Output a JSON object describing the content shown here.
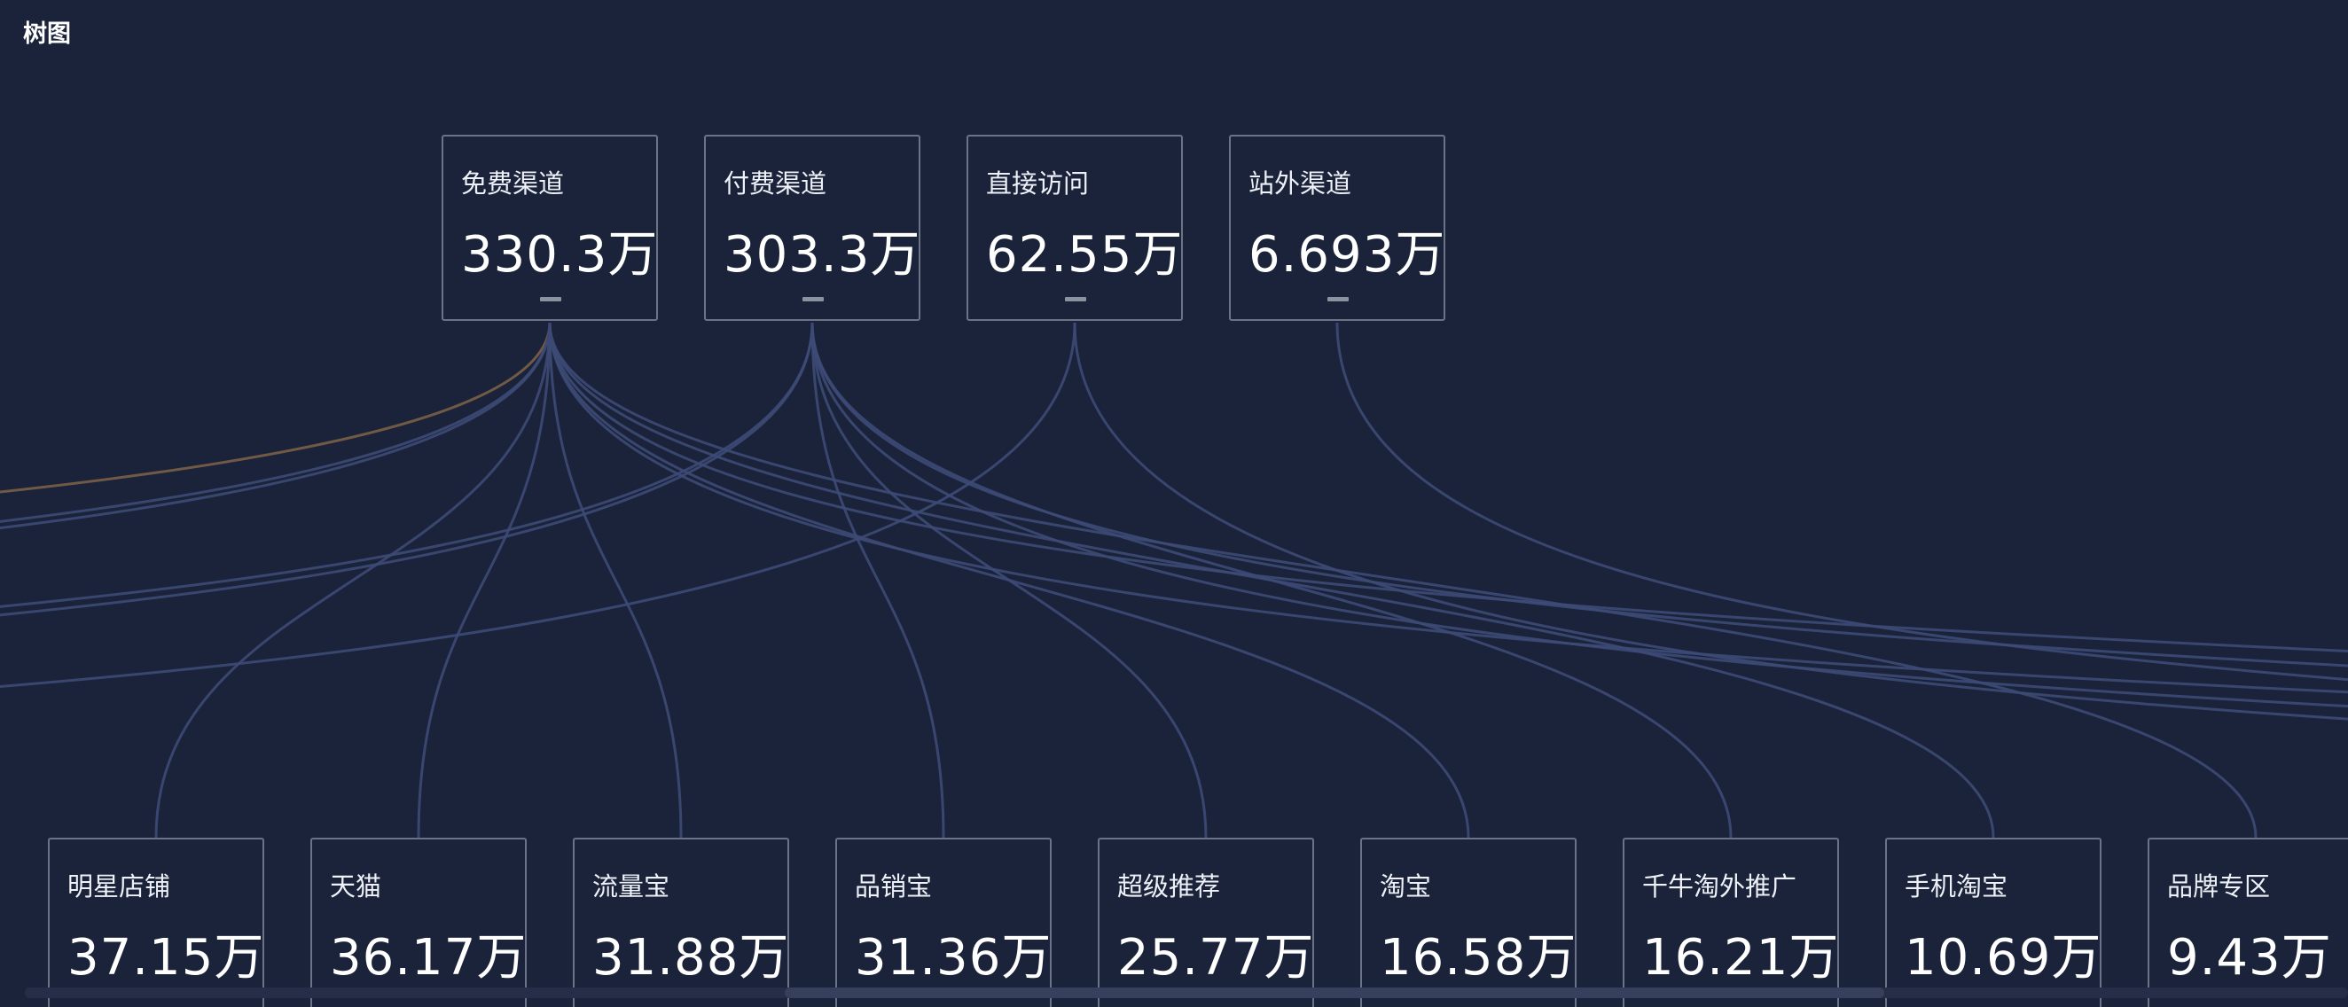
{
  "title": "树图",
  "chart_data": {
    "type": "tree",
    "parents": [
      {
        "name": "免费渠道",
        "value": "330.3万"
      },
      {
        "name": "付费渠道",
        "value": "303.3万"
      },
      {
        "name": "直接访问",
        "value": "62.55万"
      },
      {
        "name": "站外渠道",
        "value": "6.693万"
      }
    ],
    "children": [
      {
        "name": "明星店铺",
        "value": "37.15万"
      },
      {
        "name": "天猫",
        "value": "36.17万"
      },
      {
        "name": "流量宝",
        "value": "31.88万"
      },
      {
        "name": "品销宝",
        "value": "31.36万"
      },
      {
        "name": "超级推荐",
        "value": "25.77万"
      },
      {
        "name": "淘宝",
        "value": "16.58万"
      },
      {
        "name": "千牛淘外推广",
        "value": "16.21万"
      },
      {
        "name": "手机淘宝",
        "value": "10.69万"
      },
      {
        "name": "品牌专区",
        "value": "9.43万"
      }
    ],
    "colors": {
      "background": "#1b233a",
      "link": "#3d4a75",
      "highlight_link": "#7a6048",
      "node_border": "#6b7487"
    }
  }
}
